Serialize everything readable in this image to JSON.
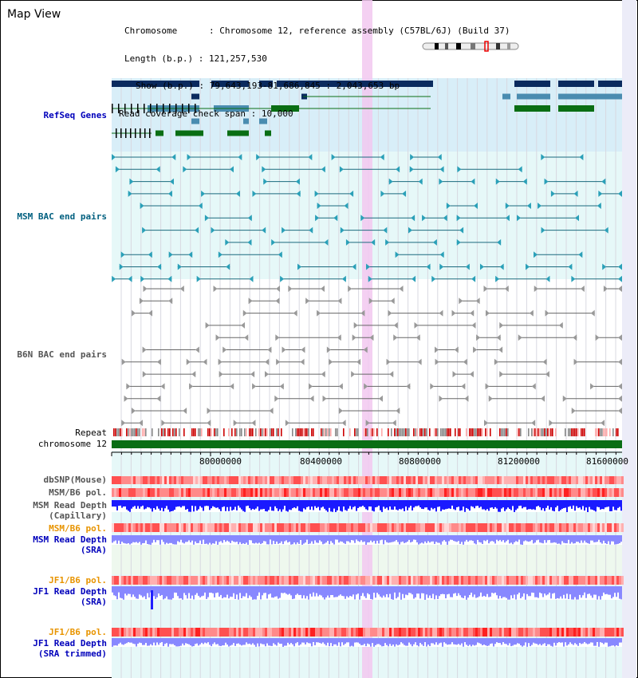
{
  "title": "Map View",
  "info": {
    "chromosome_label": "Chromosome",
    "chromosome_value": "Chromosome 12, reference assembly (C57BL/6J) (Build 37)",
    "length_label": "Length (b.p.)",
    "length_value": "121,257,530",
    "show_label": "Show (b.p.)",
    "show_value": "79,643,193-81,686,845 : 2,043,653 bp",
    "coverage_label": "Read coverage check span",
    "coverage_value": "10,000"
  },
  "tracks": {
    "refseq": "RefSeq Genes",
    "msm_bac": "MSM BAC end pairs",
    "b6n_bac": "B6N BAC end pairs",
    "repeat": "Repeat",
    "chromosome": "chromosome 12",
    "dbsnp": "dbSNP(Mouse)",
    "msm_pol": "MSM/B6 pol.",
    "msm_depth_cap": "MSM Read Depth\n(Capillary)",
    "msm_pol2": "MSM/B6 pol.",
    "msm_depth_sra": "MSM Read Depth\n(SRA)",
    "jf1_pol": "JF1/B6 pol.",
    "jf1_depth_sra": "JF1 Read Depth\n(SRA)",
    "jf1_pol2": "JF1/B6 pol.",
    "jf1_depth_trim": "JF1 Read Depth\n(SRA trimmed)"
  },
  "axis": {
    "ticks": [
      "80000000",
      "80400000",
      "80800000",
      "81200000",
      "81600000"
    ]
  },
  "colors": {
    "refseq_navy": "#0a2a5e",
    "refseq_teal": "#4a8cb0",
    "refseq_green": "#0a6e14",
    "highlight": "#f2c8f0",
    "depth_blue": "#1a1aff",
    "depth_lavender": "#8888ff",
    "pol_red": "#ff3030"
  }
}
